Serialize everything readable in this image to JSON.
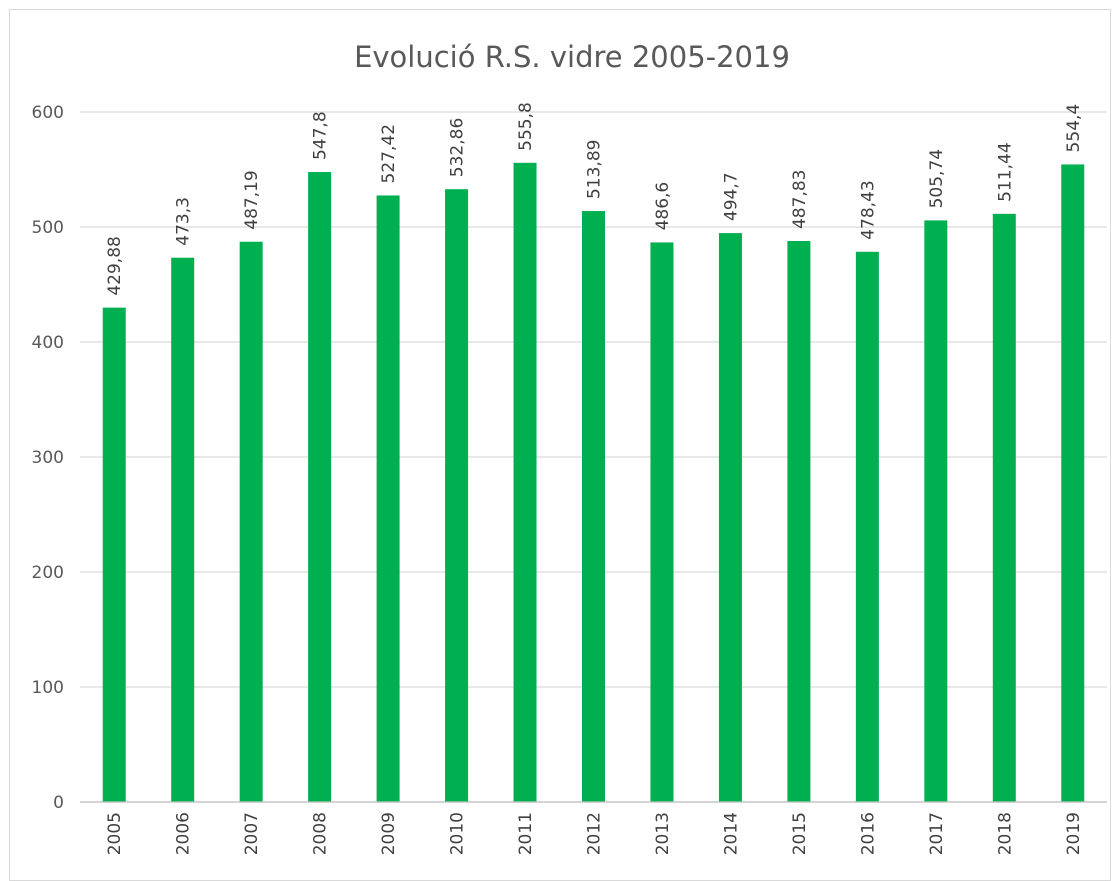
{
  "chart_data": {
    "type": "bar",
    "title": "Evolució R.S. vidre 2005-2019",
    "xlabel": "",
    "ylabel": "",
    "categories": [
      "2005",
      "2006",
      "2007",
      "2008",
      "2009",
      "2010",
      "2011",
      "2012",
      "2013",
      "2014",
      "2015",
      "2016",
      "2017",
      "2018",
      "2019"
    ],
    "values": [
      429.88,
      473.3,
      487.19,
      547.8,
      527.42,
      532.86,
      555.8,
      513.89,
      486.6,
      494.7,
      487.83,
      478.43,
      505.74,
      511.44,
      554.4
    ],
    "data_labels": [
      "429,88",
      "473,3",
      "487,19",
      "547,8",
      "527,42",
      "532,86",
      "555,8",
      "513,89",
      "486,6",
      "494,7",
      "487,83",
      "478,43",
      "505,74",
      "511,44",
      "554,4"
    ],
    "ylim": [
      0,
      600
    ],
    "yticks": [
      "0",
      "100",
      "200",
      "300",
      "400",
      "500",
      "600"
    ],
    "grid": true,
    "legend": "none",
    "bar_color": "#00b050",
    "grid_color": "#d9d9d9"
  }
}
